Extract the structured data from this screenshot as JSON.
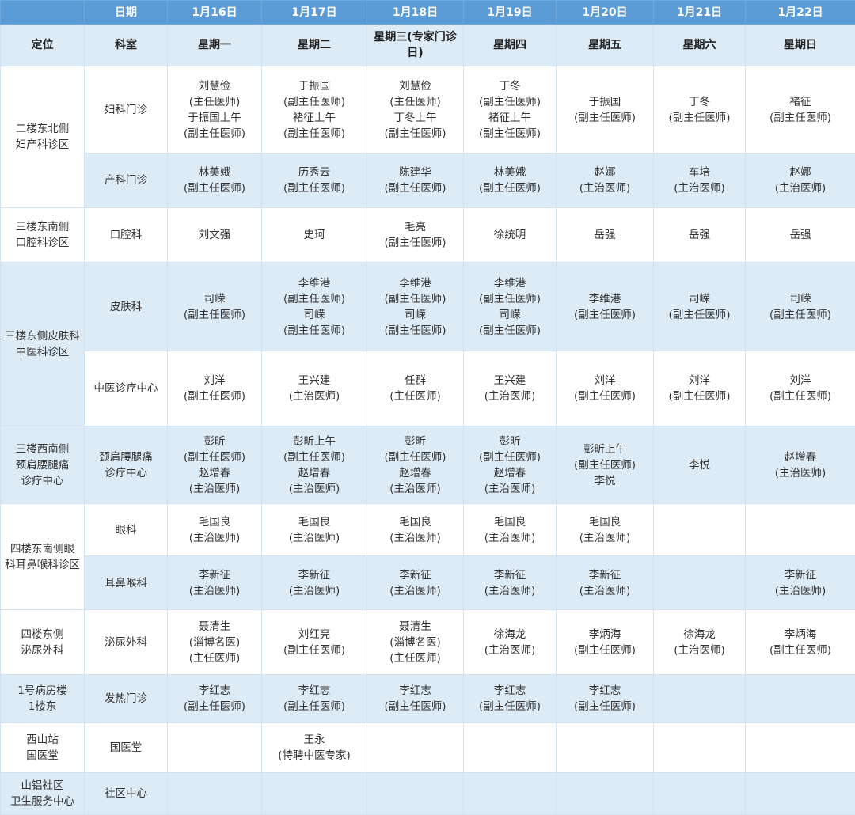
{
  "header": {
    "date_label": "日期",
    "dates": [
      "1月16日",
      "1月17日",
      "1月18日",
      "1月19日",
      "1月20日",
      "1月21日",
      "1月22日"
    ],
    "location_label": "定位",
    "department_label": "科室",
    "weekdays": [
      [
        "星期一"
      ],
      [
        "星期二"
      ],
      [
        "星期三",
        "(专家门诊日)"
      ],
      [
        "星期四"
      ],
      [
        "星期五"
      ],
      [
        "星期六"
      ],
      [
        "星期日"
      ]
    ]
  },
  "colors": {
    "header_blue": "#5b9bd5",
    "row_light_blue": "#ddebf7"
  },
  "rows": [
    {
      "location": [
        "二楼东北侧",
        "妇产科诊区"
      ],
      "location_rowspan": 2,
      "location_shaded": false,
      "department": [
        "妇科门诊"
      ],
      "shaded": false,
      "cells": [
        [
          "刘慧俭",
          "(主任医师)",
          "于振国上午",
          "(副主任医师)"
        ],
        [
          "于振国",
          "(副主任医师)",
          "褚征上午",
          "(副主任医师)"
        ],
        [
          "刘慧俭",
          "(主任医师)",
          "丁冬上午",
          "(副主任医师)"
        ],
        [
          "丁冬",
          "(副主任医师)",
          "褚征上午",
          "(副主任医师)"
        ],
        [
          "于振国",
          "(副主任医师)"
        ],
        [
          "丁冬",
          "(副主任医师)"
        ],
        [
          "褚征",
          "(副主任医师)"
        ]
      ]
    },
    {
      "department": [
        "产科门诊"
      ],
      "shaded": true,
      "cells": [
        [
          "林美娥",
          "(副主任医师)"
        ],
        [
          "历秀云",
          "(副主任医师)"
        ],
        [
          "陈建华",
          "(副主任医师)"
        ],
        [
          "林美娥",
          "(副主任医师)"
        ],
        [
          "赵娜",
          "(主治医师)"
        ],
        [
          "车培",
          "(主治医师)"
        ],
        [
          "赵娜",
          "(主治医师)"
        ]
      ]
    },
    {
      "location": [
        "三楼东南侧",
        "口腔科诊区"
      ],
      "location_rowspan": 1,
      "location_shaded": false,
      "department": [
        "口腔科"
      ],
      "shaded": false,
      "cells": [
        [
          "刘文强"
        ],
        [
          "史珂"
        ],
        [
          "毛亮",
          "(副主任医师)"
        ],
        [
          "徐统明"
        ],
        [
          "岳强"
        ],
        [
          "岳强"
        ],
        [
          "岳强"
        ]
      ]
    },
    {
      "location": [
        "三楼东侧皮肤科",
        "中医科诊区"
      ],
      "location_rowspan": 2,
      "location_shaded": true,
      "department": [
        "皮肤科"
      ],
      "shaded": true,
      "cells": [
        [
          "司嵘",
          "(副主任医师)"
        ],
        [
          "李维港",
          "(副主任医师)",
          "司嵘",
          "(副主任医师)"
        ],
        [
          "李维港",
          "(副主任医师)",
          "司嵘",
          "(副主任医师)"
        ],
        [
          "李维港",
          "(副主任医师)",
          "司嵘",
          "(副主任医师)"
        ],
        [
          "李维港",
          "(副主任医师)"
        ],
        [
          "司嵘",
          "(副主任医师)"
        ],
        [
          "司嵘",
          "(副主任医师)"
        ]
      ]
    },
    {
      "department": [
        "中医诊疗中心"
      ],
      "shaded": false,
      "cells": [
        [
          "刘洋",
          "(副主任医师)"
        ],
        [
          "王兴建",
          "(主治医师)"
        ],
        [
          "任群",
          "(主任医师)"
        ],
        [
          "王兴建",
          "(主治医师)"
        ],
        [
          "刘洋",
          "(副主任医师)"
        ],
        [
          "刘洋",
          "(副主任医师)"
        ],
        [
          "刘洋",
          "(副主任医师)"
        ]
      ]
    },
    {
      "location": [
        "三楼西南侧",
        "颈肩腰腿痛",
        "诊疗中心"
      ],
      "location_rowspan": 1,
      "location_shaded": true,
      "department": [
        "颈肩腰腿痛",
        "诊疗中心"
      ],
      "shaded": true,
      "cells": [
        [
          "彭昕",
          "(副主任医师)",
          "赵增春",
          "(主治医师)"
        ],
        [
          "彭昕上午",
          "(副主任医师)",
          "赵增春",
          "(主治医师)"
        ],
        [
          "彭昕",
          "(副主任医师)",
          "赵增春",
          "(主治医师)"
        ],
        [
          "彭昕",
          "(副主任医师)",
          "赵增春",
          "(主治医师)"
        ],
        [
          "彭昕上午",
          "(副主任医师)",
          "李悦"
        ],
        [
          "李悦"
        ],
        [
          "赵增春",
          "(主治医师)"
        ]
      ]
    },
    {
      "location": [
        "四楼东南侧眼",
        "科耳鼻喉科诊区"
      ],
      "location_rowspan": 2,
      "location_shaded": false,
      "department": [
        "眼科"
      ],
      "shaded": false,
      "cells": [
        [
          "毛国良",
          "(主治医师)"
        ],
        [
          "毛国良",
          "(主治医师)"
        ],
        [
          "毛国良",
          "(主治医师)"
        ],
        [
          "毛国良",
          "(主治医师)"
        ],
        [
          "毛国良",
          "(主治医师)"
        ],
        [],
        []
      ]
    },
    {
      "department": [
        "耳鼻喉科"
      ],
      "shaded": true,
      "cells": [
        [
          "李新征",
          "(主治医师)"
        ],
        [
          "李新征",
          "(主治医师)"
        ],
        [
          "李新征",
          "(主治医师)"
        ],
        [
          "李新征",
          "(主治医师)"
        ],
        [
          "李新征",
          "(主治医师)"
        ],
        [],
        [
          "李新征",
          "(主治医师)"
        ]
      ]
    },
    {
      "location": [
        "四楼东侧",
        "泌尿外科"
      ],
      "location_rowspan": 1,
      "location_shaded": false,
      "department": [
        "泌尿外科"
      ],
      "shaded": false,
      "cells": [
        [
          "聂清生",
          "(淄博名医)",
          "(主任医师)"
        ],
        [
          "刘红亮",
          "(副主任医师)"
        ],
        [
          "聂清生",
          "(淄博名医)",
          "(主任医师)"
        ],
        [
          "徐海龙",
          "(主治医师)"
        ],
        [
          "李炳海",
          "(副主任医师)"
        ],
        [
          "徐海龙",
          "(主治医师)"
        ],
        [
          "李炳海",
          "(副主任医师)"
        ]
      ]
    },
    {
      "location": [
        "1号病房楼",
        "1楼东"
      ],
      "location_rowspan": 1,
      "location_shaded": true,
      "department": [
        "发热门诊"
      ],
      "shaded": true,
      "cells": [
        [
          "李红志",
          "(副主任医师)"
        ],
        [
          "李红志",
          "(副主任医师)"
        ],
        [
          "李红志",
          "(副主任医师)"
        ],
        [
          "李红志",
          "(副主任医师)"
        ],
        [
          "李红志",
          "(副主任医师)"
        ],
        [],
        []
      ]
    },
    {
      "location": [
        "西山站",
        "国医堂"
      ],
      "location_rowspan": 1,
      "location_shaded": false,
      "department": [
        "国医堂"
      ],
      "shaded": false,
      "cells": [
        [],
        [
          "王永",
          "(特聘中医专家)"
        ],
        [],
        [],
        [],
        [],
        []
      ]
    },
    {
      "location": [
        "山铝社区",
        "卫生服务中心"
      ],
      "location_rowspan": 1,
      "location_shaded": true,
      "department": [
        "社区中心"
      ],
      "shaded": true,
      "cells": [
        [],
        [],
        [],
        [],
        [],
        [],
        []
      ]
    }
  ]
}
